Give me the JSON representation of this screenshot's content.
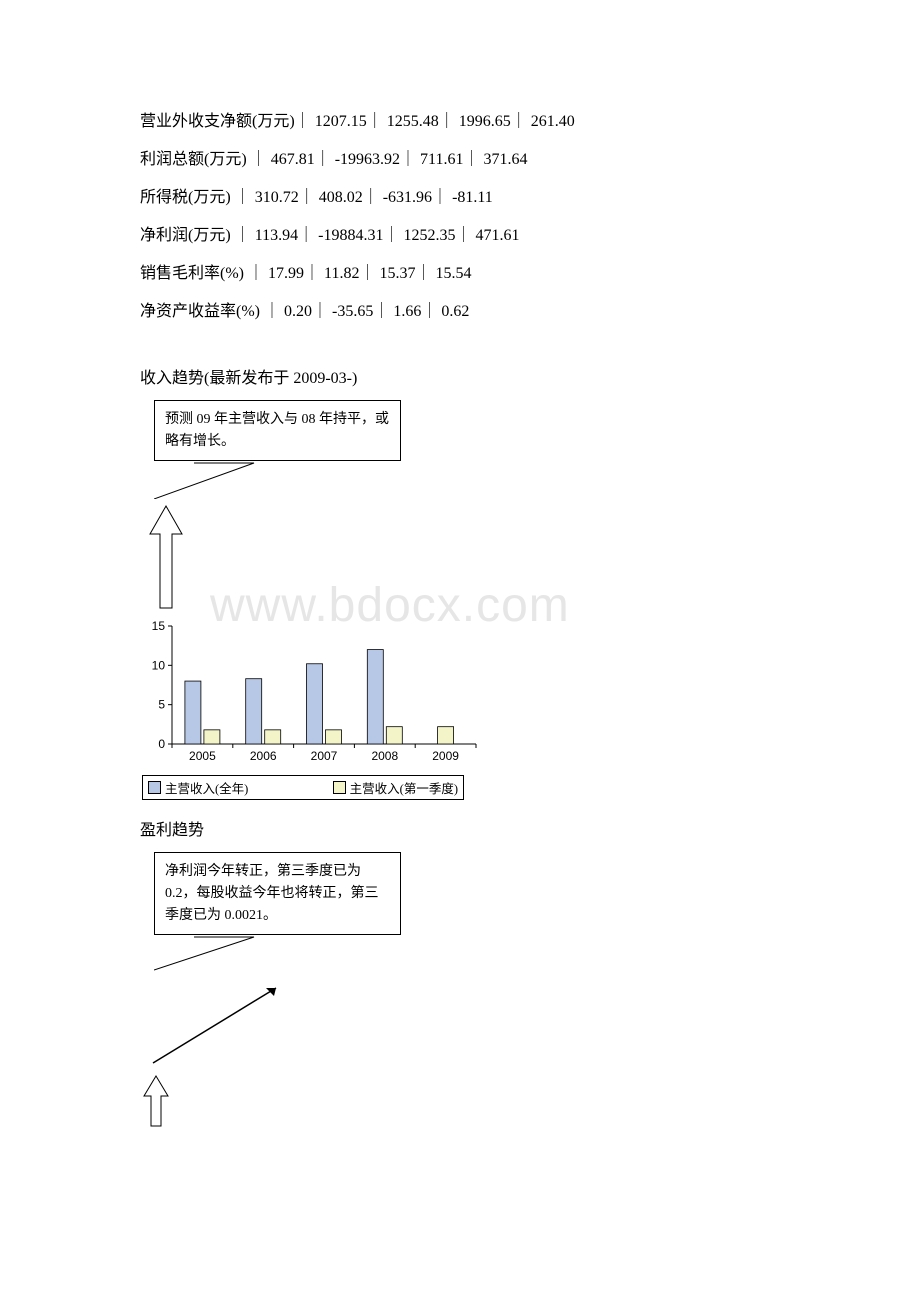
{
  "data_rows": [
    {
      "label": "营业外收支净额(万元)",
      "v": [
        "1207.15",
        "1255.48",
        "1996.65",
        "261.40"
      ]
    },
    {
      "label": "利润总额(万元)  ",
      "v": [
        "467.81",
        "-19963.92",
        "711.61",
        "371.64"
      ]
    },
    {
      "label": "所得税(万元)  ",
      "v": [
        "310.72",
        "408.02",
        "-631.96",
        "-81.11"
      ]
    },
    {
      "label": "净利润(万元)  ",
      "v": [
        "113.94",
        "-19884.31",
        "1252.35",
        "471.61"
      ]
    },
    {
      "label": "销售毛利率(%)  ",
      "v": [
        "17.99",
        "11.82",
        "15.37",
        "15.54"
      ]
    },
    {
      "label": "净资产收益率(%)  ",
      "v": [
        "0.20",
        "-35.65",
        "1.66",
        "0.62"
      ]
    }
  ],
  "section1_title": "收入趋势(最新发布于 2009-03-)",
  "callout1_text": "预测 09 年主营收入与 08 年持平，或略有增长。",
  "section2_title": "盈利趋势",
  "callout2_text": "净利润今年转正，第三季度已为 0.2，每股收益今年也将转正，第三季度已为 0.0021。",
  "watermark": "www.bdocx.com",
  "chart": {
    "type": "bar",
    "categories": [
      "2005",
      "2006",
      "2007",
      "2008",
      "2009"
    ],
    "series_full": [
      8,
      8.3,
      10.2,
      12,
      null
    ],
    "series_q1": [
      1.8,
      1.8,
      1.8,
      2.2,
      2.2
    ],
    "full_color": "#b7c7e6",
    "q1_color": "#f3f5c8",
    "border_color": "#000000",
    "axis_color": "#000000",
    "ylim": [
      0,
      15
    ],
    "yticks": [
      0,
      5,
      10,
      15
    ],
    "legend_full": "主营收入(全年)",
    "legend_q1": "主营收入(第一季度)",
    "plot_bg": "#ffffff",
    "font_size": 12
  },
  "colors": {
    "text": "#000000",
    "watermark": "#e6e6e6"
  }
}
